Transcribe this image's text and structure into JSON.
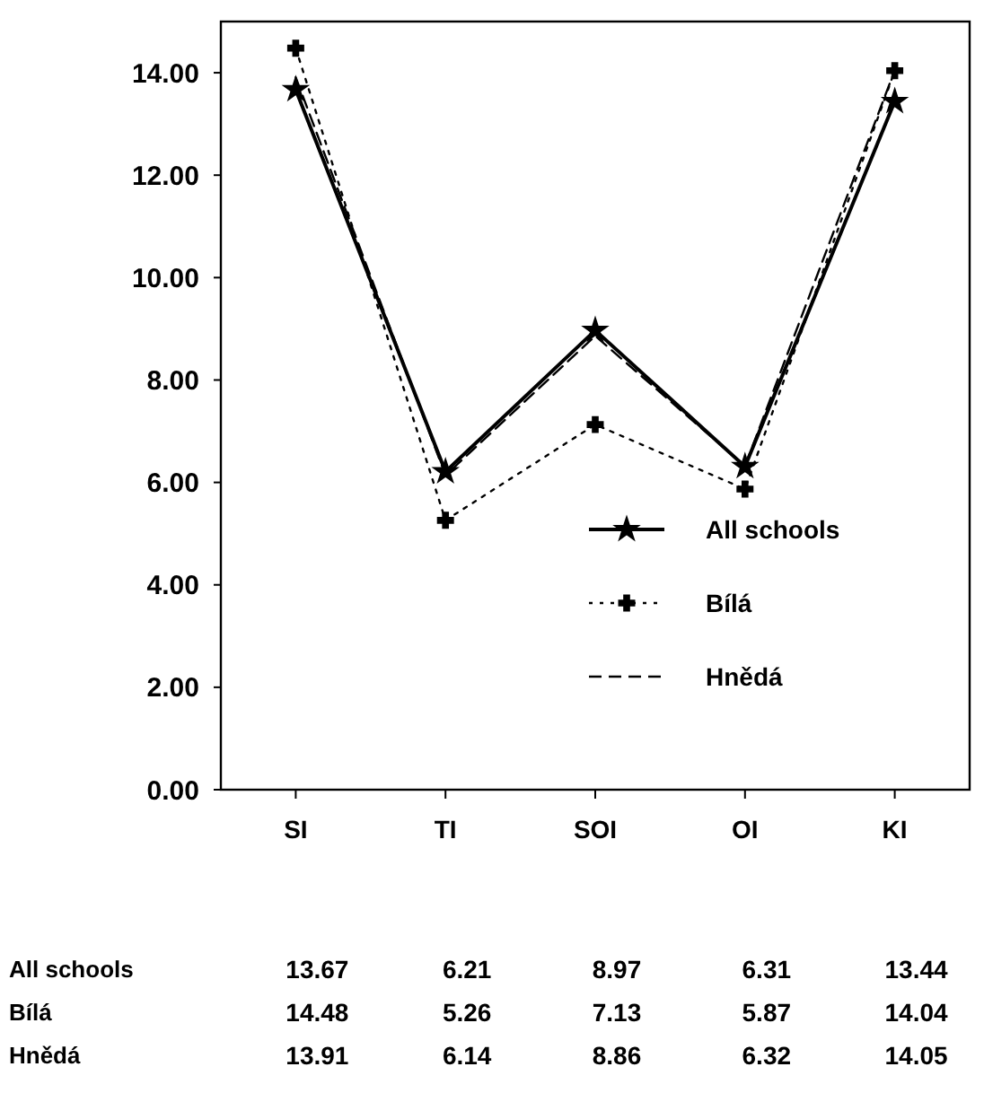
{
  "chart_data": {
    "type": "line",
    "categories": [
      "SI",
      "TI",
      "SOI",
      "OI",
      "KI"
    ],
    "ylim": [
      0,
      15
    ],
    "yticks": [
      {
        "value": 0,
        "label": "0.00"
      },
      {
        "value": 2,
        "label": "2.00"
      },
      {
        "value": 4,
        "label": "4.00"
      },
      {
        "value": 6,
        "label": "6.00"
      },
      {
        "value": 8,
        "label": "8.00"
      },
      {
        "value": 10,
        "label": "10.00"
      },
      {
        "value": 12,
        "label": "12.00"
      },
      {
        "value": 14,
        "label": "14.00"
      }
    ],
    "series": [
      {
        "name": "All schools",
        "color": "#000000",
        "values": [
          13.67,
          6.21,
          8.97,
          6.31,
          13.44
        ],
        "marker": "star",
        "line_style": "solid"
      },
      {
        "name": "Bílá",
        "color": "#000000",
        "values": [
          14.48,
          5.26,
          7.13,
          5.87,
          14.04
        ],
        "marker": "cross",
        "line_style": "dotted"
      },
      {
        "name": "Hnědá",
        "color": "#000000",
        "values": [
          13.91,
          6.14,
          8.86,
          6.32,
          14.05
        ],
        "marker": "none",
        "line_style": "dashed"
      }
    ],
    "data_labels": true,
    "legend": "bottom right",
    "grid": false
  }
}
